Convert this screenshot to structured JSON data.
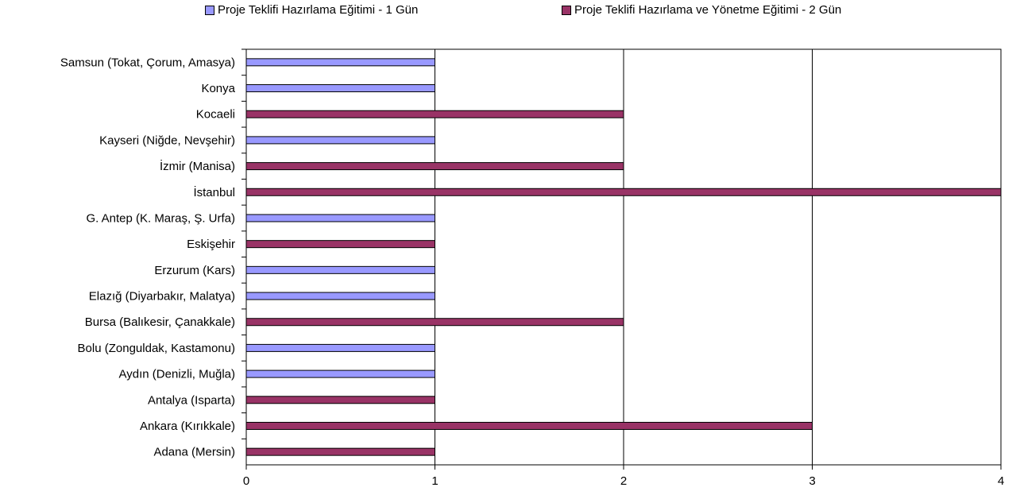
{
  "chart_data": {
    "type": "bar",
    "orientation": "horizontal",
    "categories": [
      "Samsun (Tokat, Çorum, Amasya)",
      "Konya",
      "Kocaeli",
      "Kayseri (Niğde, Nevşehir)",
      "İzmir (Manisa)",
      "İstanbul",
      "G. Antep (K. Maraş, Ş. Urfa)",
      "Eskişehir",
      "Erzurum (Kars)",
      "Elazığ (Diyarbakır, Malatya)",
      "Bursa (Balıkesir, Çanakkale)",
      "Bolu (Zonguldak, Kastamonu)",
      "Aydın (Denizli, Muğla)",
      "Antalya (Isparta)",
      "Ankara (Kırıkkale)",
      "Adana (Mersin)"
    ],
    "series": [
      {
        "name": "Proje Teklifi Hazırlama Eğitimi - 1 Gün",
        "color": "#9999FF",
        "values": [
          1,
          1,
          null,
          1,
          null,
          null,
          1,
          null,
          1,
          1,
          null,
          1,
          1,
          null,
          null,
          null
        ]
      },
      {
        "name": "Proje Teklifi Hazırlama ve Yönetme Eğitimi - 2 Gün",
        "color": "#993366",
        "values": [
          null,
          null,
          2,
          null,
          2,
          4,
          null,
          1,
          null,
          null,
          2,
          null,
          null,
          1,
          3,
          1
        ]
      }
    ],
    "xlim": [
      0,
      4
    ],
    "xticks": [
      "0",
      "1",
      "2",
      "3",
      "4"
    ],
    "grid": true,
    "legend_position": "top"
  }
}
